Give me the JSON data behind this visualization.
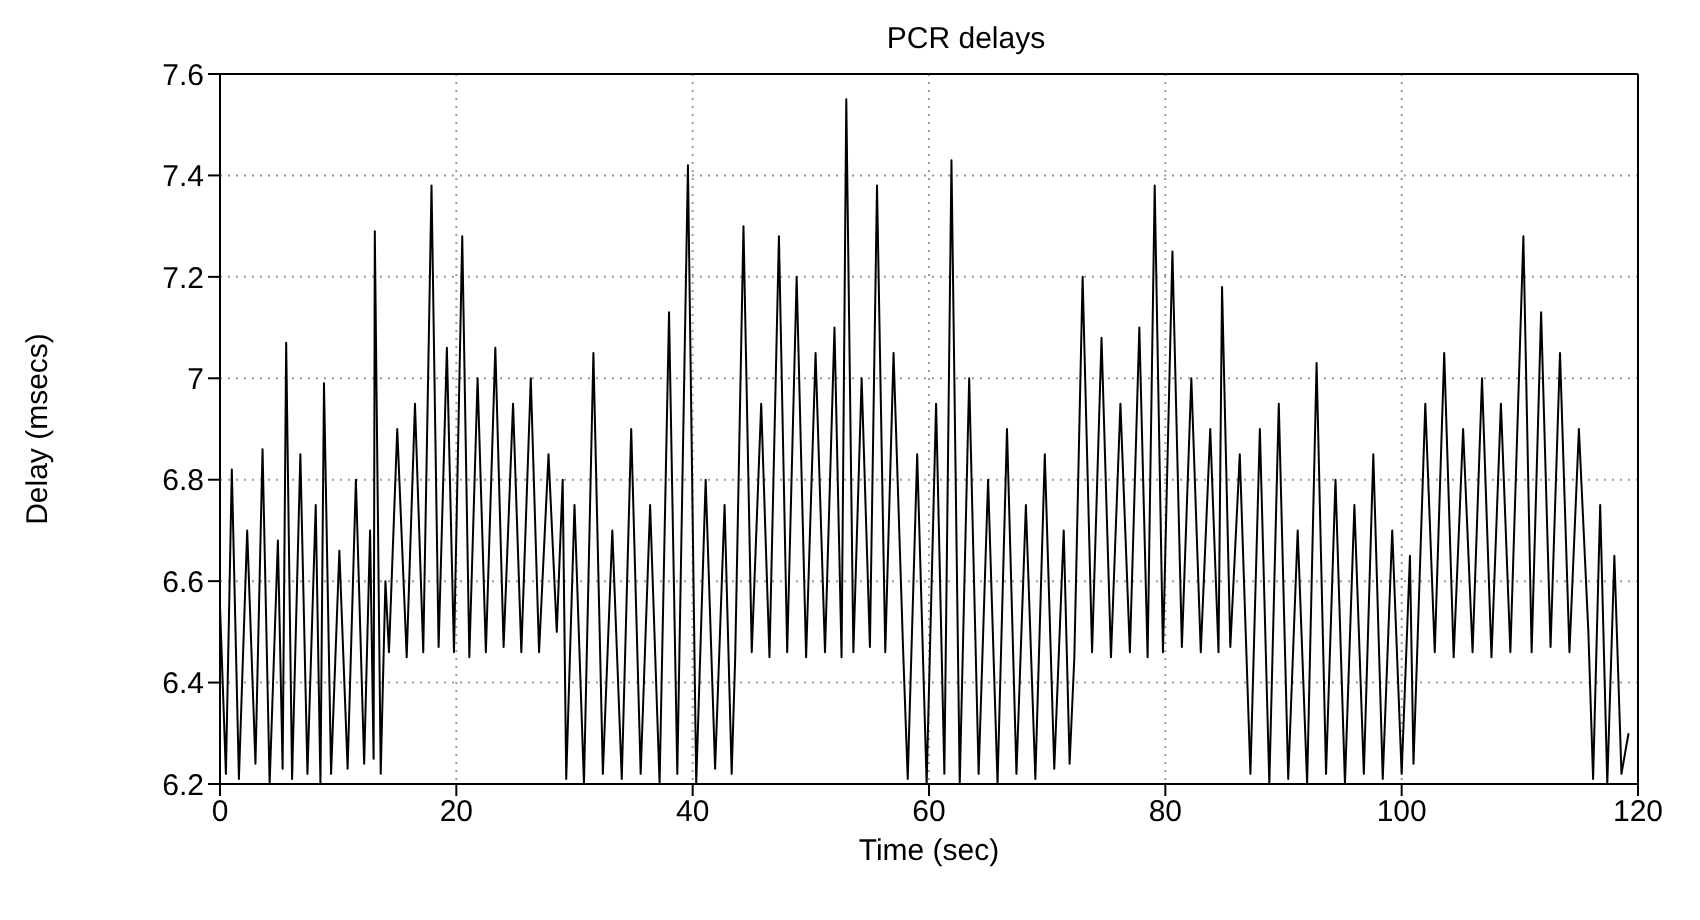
{
  "chart_data": {
    "type": "line",
    "title": "PCR delays",
    "xlabel": "Time (sec)",
    "ylabel": "Delay (msecs)",
    "xlim": [
      0,
      120
    ],
    "xticks": [
      0,
      20,
      40,
      60,
      80,
      100,
      120
    ],
    "ylim": [
      6.2,
      7.6
    ],
    "yticks": [
      6.2,
      6.4,
      6.6,
      6.8,
      7,
      7.2,
      7.4,
      7.6
    ],
    "grid": true,
    "marker": "none",
    "line_style": "solid",
    "series": [
      {
        "color": "#000000",
        "x": [
          0,
          0.5,
          1,
          1.6,
          2.3,
          3,
          3.6,
          4.2,
          4.9,
          5.3,
          5.6,
          6.1,
          6.8,
          7.4,
          8.1,
          8.5,
          8.8,
          9.4,
          10.1,
          10.8,
          11.5,
          12.2,
          12.7,
          13.0,
          13.1,
          13.6,
          14.0,
          14.3,
          15,
          15.8,
          16.5,
          17.2,
          17.9,
          18.5,
          19.2,
          19.8,
          20.5,
          21.1,
          21.8,
          22.5,
          23.3,
          24,
          24.8,
          25.5,
          26.3,
          27,
          27.8,
          28.5,
          29,
          29.3,
          30,
          30.8,
          31.6,
          32.4,
          33.2,
          34,
          34.8,
          35.6,
          36.4,
          37.2,
          38,
          38.7,
          39.6,
          40.3,
          41.1,
          41.9,
          42.7,
          43.3,
          43.6,
          44.3,
          45,
          45.8,
          46.5,
          47.3,
          48,
          48.8,
          49.6,
          50.4,
          51.2,
          52,
          52.6,
          53,
          53.6,
          54.3,
          55,
          55.6,
          56.3,
          57,
          57.8,
          58.2,
          59,
          59.8,
          60.6,
          61.3,
          61.9,
          62.6,
          63.4,
          64.2,
          65,
          65.8,
          66.6,
          67.4,
          68.2,
          69,
          69.8,
          70.6,
          71.4,
          71.9,
          72.3,
          73,
          73.8,
          74.6,
          75.4,
          76.2,
          77,
          77.8,
          78.5,
          79.1,
          79.8,
          80.6,
          81.4,
          82.2,
          83,
          83.8,
          84.5,
          84.8,
          85.5,
          86.3,
          86.8,
          87.2,
          88,
          88.8,
          89.6,
          90.4,
          91.2,
          92,
          92.8,
          93.6,
          94.4,
          95.2,
          96,
          96.8,
          97.6,
          98.4,
          99.2,
          100,
          100.7,
          101,
          101.3,
          102,
          102.8,
          103.6,
          104.4,
          105.2,
          106,
          106.8,
          107.6,
          108.4,
          109.2,
          110.3,
          111,
          111.8,
          112.6,
          113.4,
          114.2,
          115,
          115.8,
          116.2,
          116.8,
          117.4,
          118,
          118.6,
          119.2
        ],
        "values": [
          6.55,
          6.22,
          6.82,
          6.21,
          6.7,
          6.24,
          6.86,
          6.2,
          6.68,
          6.23,
          7.07,
          6.21,
          6.85,
          6.22,
          6.75,
          6.2,
          6.99,
          6.22,
          6.66,
          6.23,
          6.8,
          6.24,
          6.7,
          6.25,
          7.29,
          6.22,
          6.6,
          6.46,
          6.9,
          6.45,
          6.95,
          6.46,
          7.38,
          6.47,
          7.06,
          6.46,
          7.28,
          6.45,
          7.0,
          6.46,
          7.06,
          6.47,
          6.95,
          6.46,
          7.0,
          6.46,
          6.85,
          6.5,
          6.8,
          6.21,
          6.75,
          6.2,
          7.05,
          6.22,
          6.7,
          6.21,
          6.9,
          6.22,
          6.75,
          6.2,
          7.13,
          6.22,
          7.42,
          6.2,
          6.8,
          6.23,
          6.75,
          6.22,
          6.45,
          7.3,
          6.46,
          6.95,
          6.45,
          7.28,
          6.46,
          7.2,
          6.45,
          7.05,
          6.46,
          7.1,
          6.45,
          7.55,
          6.46,
          7.0,
          6.47,
          7.38,
          6.46,
          7.05,
          6.47,
          6.21,
          6.85,
          6.2,
          6.95,
          6.22,
          7.43,
          6.2,
          7.0,
          6.22,
          6.8,
          6.2,
          6.9,
          6.22,
          6.75,
          6.21,
          6.85,
          6.23,
          6.7,
          6.24,
          6.45,
          7.2,
          6.46,
          7.08,
          6.45,
          6.95,
          6.46,
          7.1,
          6.45,
          7.38,
          6.46,
          7.25,
          6.47,
          7.0,
          6.46,
          6.9,
          6.46,
          7.18,
          6.47,
          6.85,
          6.5,
          6.22,
          6.9,
          6.2,
          6.95,
          6.21,
          6.7,
          6.2,
          7.03,
          6.22,
          6.8,
          6.2,
          6.75,
          6.22,
          6.85,
          6.21,
          6.7,
          6.22,
          6.65,
          6.24,
          6.45,
          6.95,
          6.46,
          7.05,
          6.45,
          6.9,
          6.46,
          7.0,
          6.45,
          6.95,
          6.46,
          7.28,
          6.46,
          7.13,
          6.47,
          7.05,
          6.46,
          6.9,
          6.5,
          6.21,
          6.75,
          6.2,
          6.65,
          6.22,
          6.3
        ]
      }
    ]
  }
}
